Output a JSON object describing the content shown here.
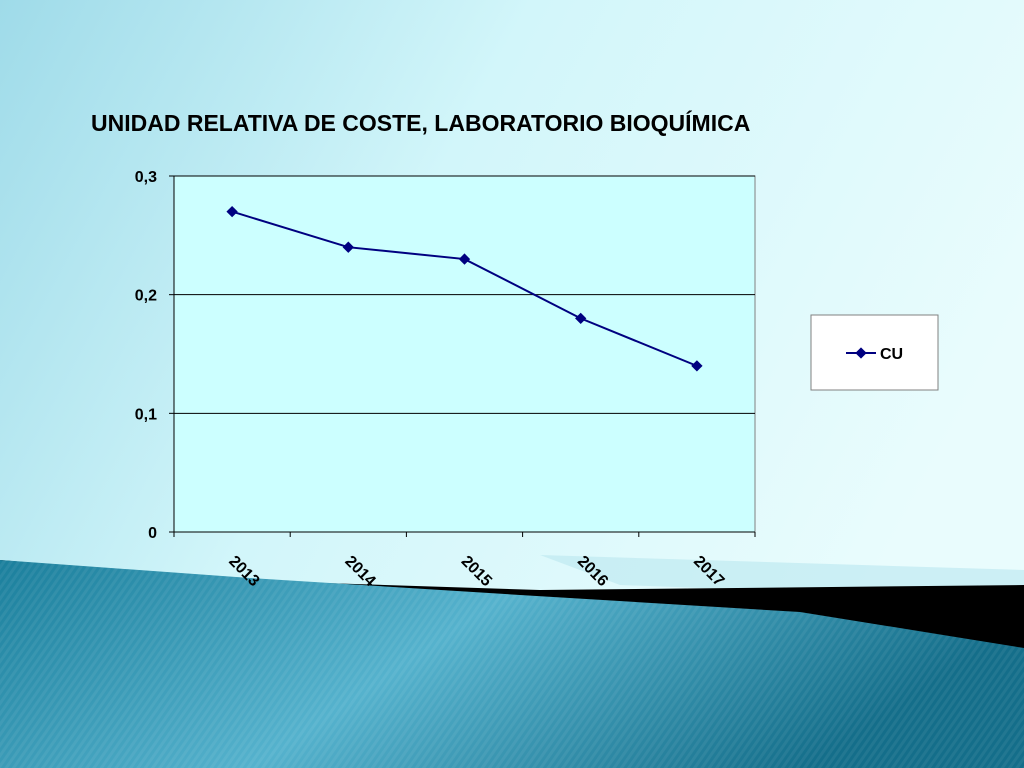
{
  "chart_data": {
    "type": "line",
    "title": "UNIDAD RELATIVA DE COSTE, LABORATORIO BIOQUÍMICA",
    "categories": [
      "2013",
      "2014",
      "2015",
      "2016",
      "2017"
    ],
    "series": [
      {
        "name": "CU",
        "values": [
          0.27,
          0.24,
          0.23,
          0.18,
          0.14
        ]
      }
    ],
    "ylim": [
      0,
      0.3
    ],
    "yticks": [
      "0",
      "0,1",
      "0,2",
      "0,3"
    ],
    "grid": true,
    "legend": "right",
    "colors": {
      "series": "#000080",
      "plot_bg": "#CCFFFF"
    }
  }
}
